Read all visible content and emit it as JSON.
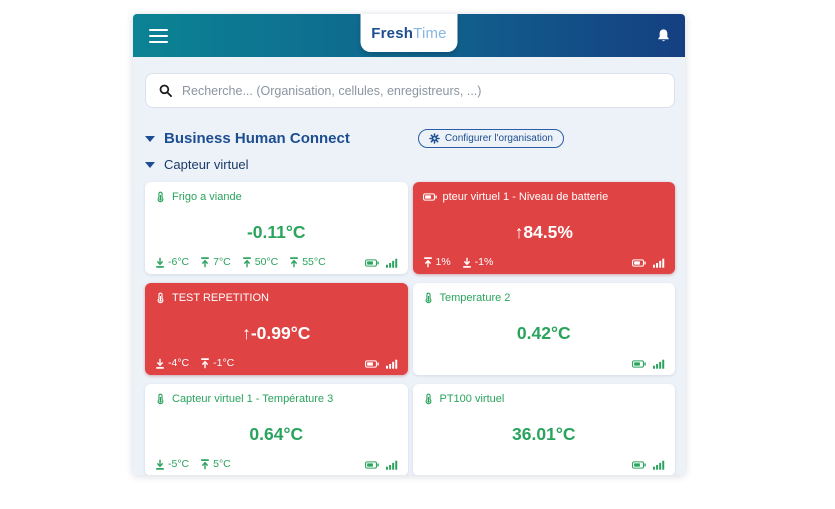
{
  "header": {
    "logo_part1": "Fresh",
    "logo_part2": "Time",
    "menu_icon": "hamburger-icon",
    "notifications_icon": "bell-icon"
  },
  "search": {
    "placeholder": "Recherche... (Organisation, cellules, enregistreurs, ...)",
    "icon": "magnifier-icon"
  },
  "organization": {
    "name": "Business Human Connect",
    "configure_label": "Configurer l'organisation",
    "configure_icon": "gear-icon",
    "group": "Capteur virtuel",
    "expander_icon": "triangle-down-icon"
  },
  "cards": [
    {
      "title": "Frigo a viande",
      "icon": "thermometer",
      "value": "-0.11°C",
      "alert": false,
      "thresholds": [
        {
          "type": "min",
          "label": "-6°C"
        },
        {
          "type": "max",
          "label": "7°C"
        },
        {
          "type": "max",
          "label": "50°C"
        },
        {
          "type": "max",
          "label": "55°C"
        }
      ]
    },
    {
      "title": "pteur virtuel 1 - Niveau de batterie",
      "icon": "battery",
      "value": "↑84.5%",
      "alert": true,
      "thresholds": [
        {
          "type": "max",
          "label": "1%"
        },
        {
          "type": "min",
          "label": "-1%"
        }
      ]
    },
    {
      "title": "TEST REPETITION",
      "icon": "thermometer",
      "value": "↑-0.99°C",
      "alert": true,
      "thresholds": [
        {
          "type": "min",
          "label": "-4°C"
        },
        {
          "type": "max",
          "label": "-1°C"
        }
      ]
    },
    {
      "title": "Temperature 2",
      "icon": "thermometer",
      "value": "0.42°C",
      "alert": false,
      "thresholds": []
    },
    {
      "title": "Capteur virtuel 1 - Température 3",
      "icon": "thermometer",
      "value": "0.64°C",
      "alert": false,
      "thresholds": [
        {
          "type": "min",
          "label": "-5°C"
        },
        {
          "type": "max",
          "label": "5°C"
        }
      ]
    },
    {
      "title": "PT100 virtuel",
      "icon": "thermometer",
      "value": "36.01°C",
      "alert": false,
      "thresholds": []
    }
  ],
  "icons": {
    "thermometer": "svg-thermometer-shape",
    "battery": "svg-battery-shape",
    "signal": "svg-signal-bars-shape",
    "min": "svg-arrow-down-to-bar",
    "max": "svg-arrow-up-to-bar"
  },
  "colors": {
    "header_gradient_left": "#0b8494",
    "header_gradient_right": "#153f81",
    "brand_blue": "#1d4e91",
    "brand_light_blue": "#87b7e3",
    "ok_green": "#2aa35d",
    "alert_red": "#e04343",
    "app_background": "#edf2f9"
  }
}
